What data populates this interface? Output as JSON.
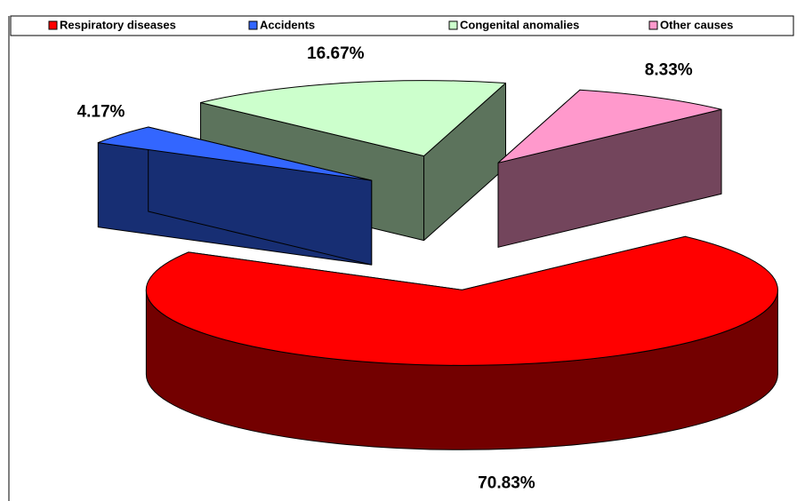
{
  "chart_data": {
    "type": "pie3d",
    "categories": [
      "Respiratory diseases",
      "Accidents",
      "Congenital anomalies",
      "Other causes"
    ],
    "values": [
      70.83,
      4.17,
      16.67,
      8.33
    ],
    "value_labels": [
      "70.83%",
      "4.17%",
      "16.67%",
      "8.33%"
    ],
    "colors": [
      "#ff0000",
      "#3366ff",
      "#ccffcc",
      "#ff99cc"
    ],
    "legend": "top"
  }
}
